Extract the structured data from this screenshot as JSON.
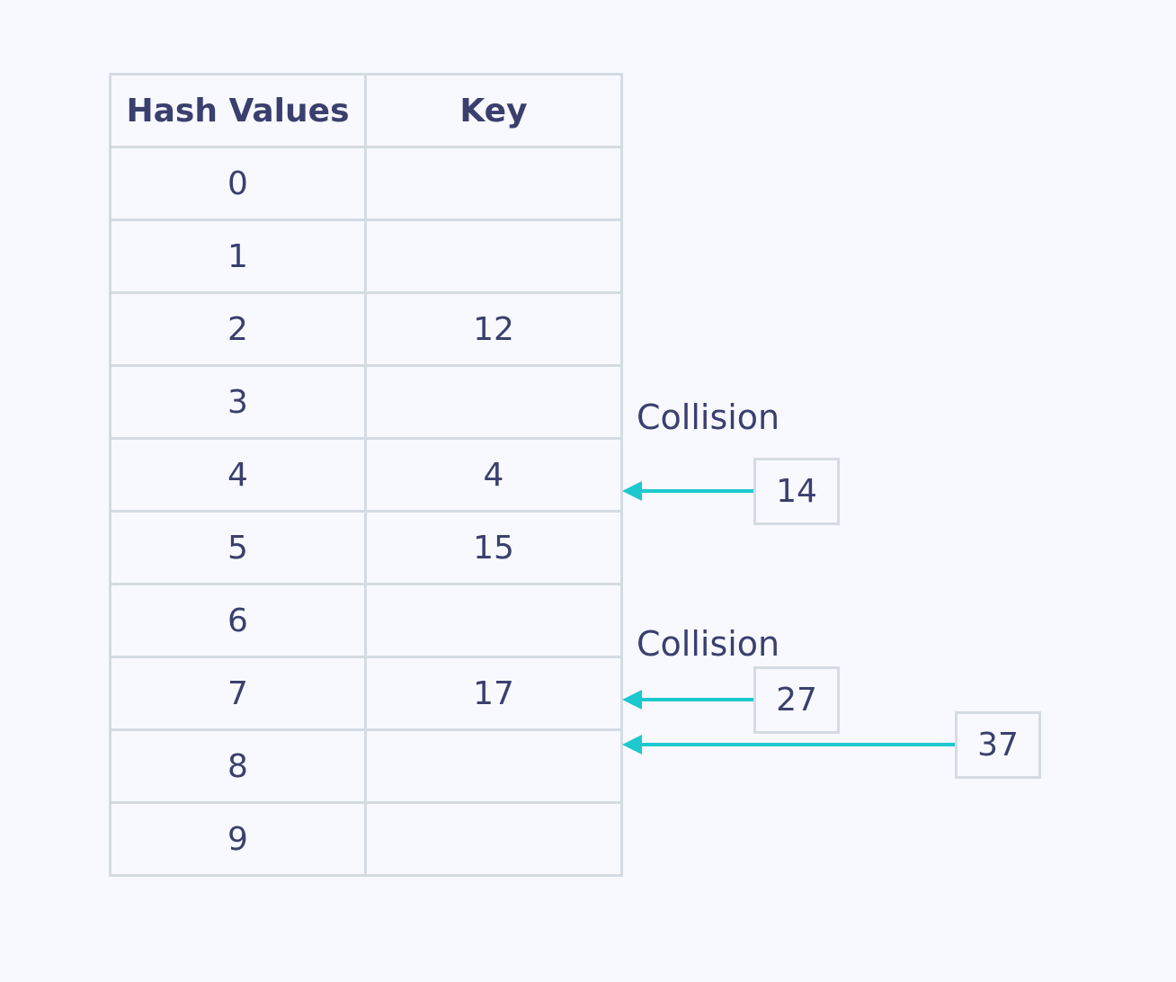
{
  "table": {
    "headers": [
      "Hash Values",
      "Key"
    ],
    "rows": [
      {
        "hash": "0",
        "key": ""
      },
      {
        "hash": "1",
        "key": ""
      },
      {
        "hash": "2",
        "key": "12"
      },
      {
        "hash": "3",
        "key": ""
      },
      {
        "hash": "4",
        "key": "4"
      },
      {
        "hash": "5",
        "key": "15"
      },
      {
        "hash": "6",
        "key": ""
      },
      {
        "hash": "7",
        "key": "17"
      },
      {
        "hash": "8",
        "key": ""
      },
      {
        "hash": "9",
        "key": ""
      }
    ]
  },
  "collisions": [
    {
      "label": "Collision",
      "incoming": [
        "14"
      ]
    },
    {
      "label": "Collision",
      "incoming": [
        "27",
        "37"
      ]
    }
  ],
  "colors": {
    "arrow": "#1ec8cf",
    "border": "#d5dbe3",
    "text": "#3b3f6e",
    "background": "#f8f9fe"
  }
}
